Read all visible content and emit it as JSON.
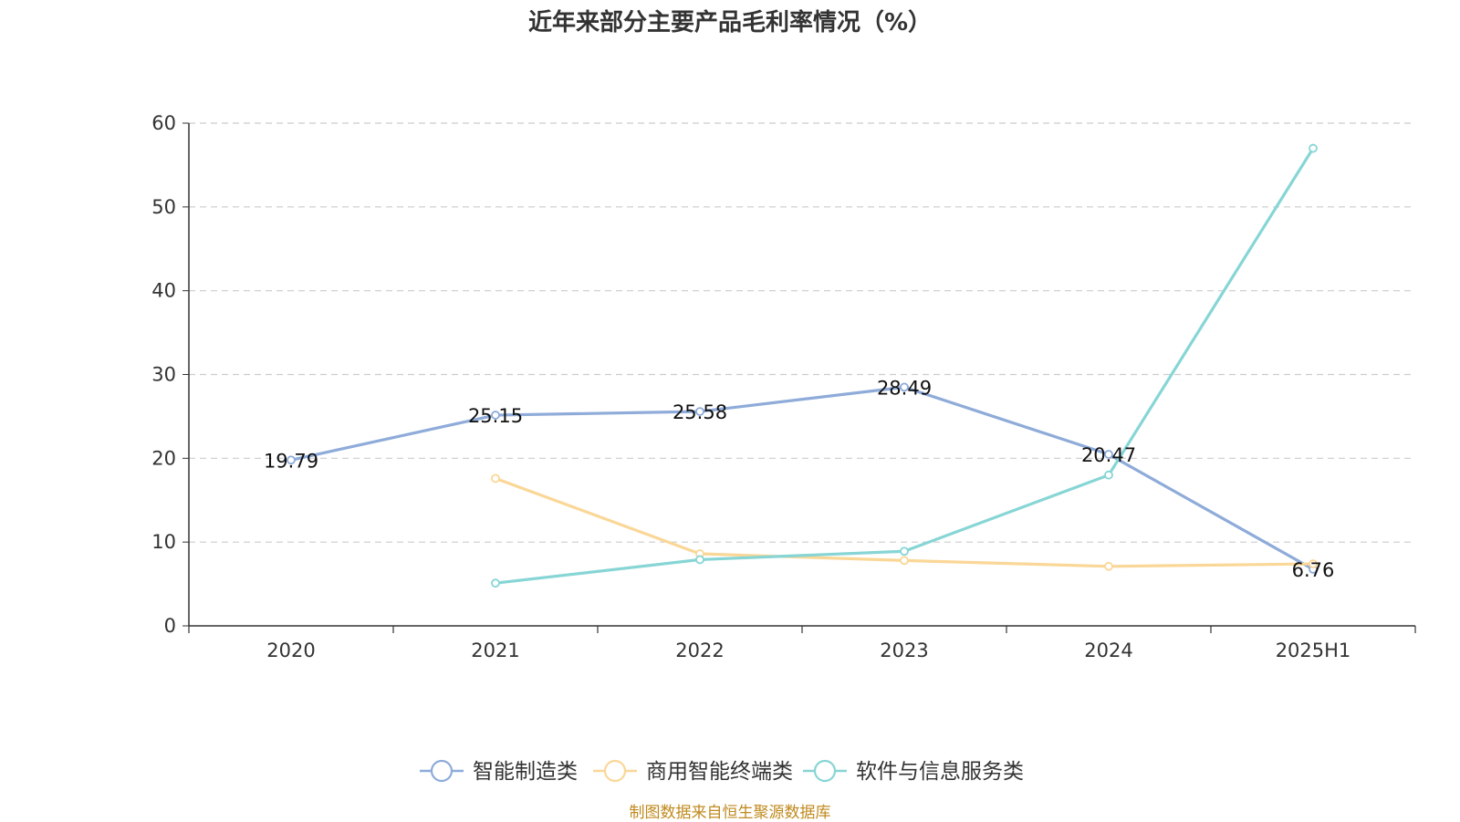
{
  "chart_data": {
    "type": "line",
    "title": "近年来部分主要产品毛利率情况（%）",
    "source": "制图数据来自恒生聚源数据库",
    "categories": [
      "2020",
      "2021",
      "2022",
      "2023",
      "2024",
      "2025H1"
    ],
    "ylim": [
      0,
      60
    ],
    "yticks": [
      0,
      10,
      20,
      30,
      40,
      50,
      60
    ],
    "grid": true,
    "legend_position": "bottom-center",
    "series": [
      {
        "name": "智能制造类",
        "color": "#8eabd9",
        "values": [
          19.79,
          25.15,
          25.58,
          28.49,
          20.47,
          6.76
        ],
        "labels": [
          "19.79",
          "25.15",
          "25.58",
          "28.49",
          "20.47",
          "6.76"
        ]
      },
      {
        "name": "商用智能终端类",
        "color": "#fad797",
        "values": [
          null,
          17.6,
          8.6,
          7.8,
          7.1,
          7.4
        ]
      },
      {
        "name": "软件与信息服务类",
        "color": "#87d5d5",
        "values": [
          null,
          5.1,
          7.9,
          8.9,
          18.0,
          57.0
        ]
      }
    ]
  }
}
